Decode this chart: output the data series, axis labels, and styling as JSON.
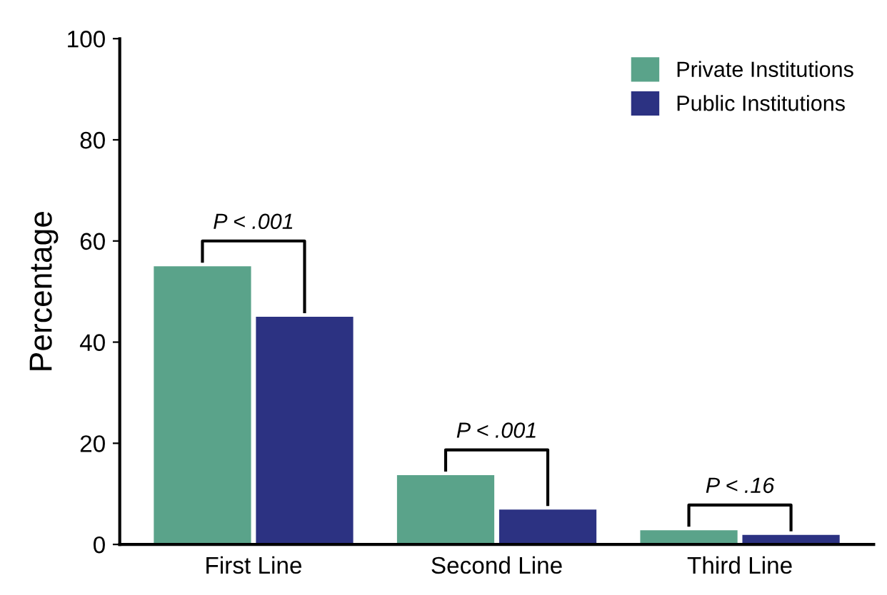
{
  "chart_data": {
    "type": "bar",
    "ylabel": "Percentage",
    "categories": [
      "First Line",
      "Second Line",
      "Third Line"
    ],
    "series": [
      {
        "name": "Private Institutions",
        "color": "#5aa38a",
        "values": [
          55,
          13.7,
          2.8
        ]
      },
      {
        "name": "Public Institutions",
        "color": "#2c3282",
        "values": [
          45,
          6.9,
          1.9
        ]
      }
    ],
    "ylim": [
      0,
      100
    ],
    "yticks": [
      0,
      20,
      40,
      60,
      80,
      100
    ],
    "grid": false,
    "legend": "top right",
    "annotations": [
      "P < .001",
      "P < .001",
      "P < .16"
    ]
  }
}
